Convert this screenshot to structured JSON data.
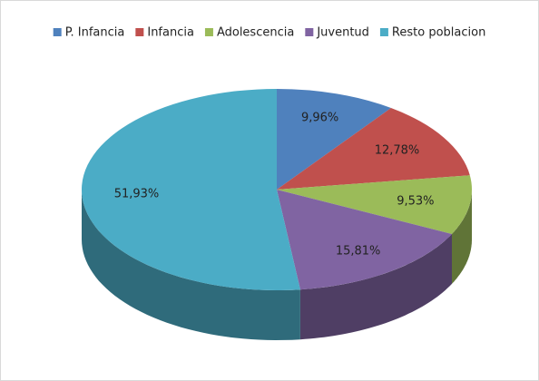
{
  "chart_data": {
    "type": "pie3d",
    "categories": [
      "P. Infancia",
      "Infancia",
      "Adolescencia",
      "Juventud",
      "Resto poblacion"
    ],
    "values": [
      9.96,
      12.78,
      9.53,
      15.81,
      51.93
    ],
    "value_labels": [
      "9,96%",
      "12,78%",
      "9,53%",
      "15,81%",
      "51,93%"
    ],
    "colors": [
      "#4f81bd",
      "#c0504d",
      "#9bbb59",
      "#8064a2",
      "#4bacc6"
    ],
    "legend": "top"
  }
}
